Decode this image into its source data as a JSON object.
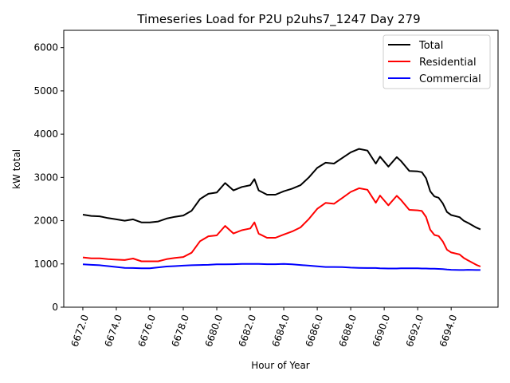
{
  "chart_data": {
    "type": "line",
    "title": "Timeseries Load for P2U p2uhs7_1247  Day 279",
    "xlabel": "Hour of Year",
    "ylabel": "kW total",
    "xlim": [
      6670.86,
      6696.8
    ],
    "ylim": [
      0,
      6400
    ],
    "xticks": [
      6672,
      6674,
      6676,
      6678,
      6680,
      6682,
      6684,
      6686,
      6688,
      6690,
      6692,
      6694
    ],
    "xtick_labels": [
      "6672.0",
      "6674.0",
      "6676.0",
      "6678.0",
      "6680.0",
      "6682.0",
      "6684.0",
      "6686.0",
      "6688.0",
      "6690.0",
      "6692.0",
      "6694.0"
    ],
    "yticks": [
      0,
      1000,
      2000,
      3000,
      4000,
      5000,
      6000
    ],
    "ytick_labels": [
      "0",
      "1000",
      "2000",
      "3000",
      "4000",
      "5000",
      "6000"
    ],
    "legend_placement": "top-right",
    "grid": false,
    "x": [
      6672,
      6672.5,
      6673,
      6673.5,
      6674,
      6674.5,
      6675,
      6675.5,
      6676,
      6676.5,
      6677,
      6677.5,
      6678,
      6678.5,
      6679,
      6679.5,
      6680,
      6680.5,
      6681,
      6681.5,
      6682,
      6682.25,
      6682.5,
      6683,
      6683.5,
      6684,
      6684.5,
      6685,
      6685.5,
      6686,
      6686.5,
      6687,
      6687.5,
      6688,
      6688.5,
      6689,
      6689.5,
      6689.75,
      6690.25,
      6690.75,
      6691,
      6691.5,
      6692,
      6692.25,
      6692.5,
      6692.75,
      6693,
      6693.25,
      6693.5,
      6693.75,
      6694,
      6694.5,
      6694.75,
      6695,
      6695.5,
      6695.75
    ],
    "series": [
      {
        "name": "Total",
        "color": "#000000",
        "values": [
          2140,
          2110,
          2100,
          2060,
          2030,
          2000,
          2030,
          1960,
          1960,
          1980,
          2050,
          2090,
          2120,
          2230,
          2500,
          2620,
          2650,
          2870,
          2700,
          2780,
          2820,
          2960,
          2700,
          2600,
          2600,
          2680,
          2740,
          2820,
          3000,
          3220,
          3340,
          3320,
          3450,
          3580,
          3660,
          3620,
          3320,
          3480,
          3250,
          3470,
          3380,
          3150,
          3140,
          3120,
          2980,
          2680,
          2560,
          2530,
          2400,
          2200,
          2130,
          2080,
          2000,
          1950,
          1840,
          1800
        ]
      },
      {
        "name": "Residential",
        "color": "#ff0000",
        "values": [
          1150,
          1130,
          1130,
          1110,
          1100,
          1090,
          1125,
          1060,
          1060,
          1060,
          1110,
          1140,
          1160,
          1260,
          1525,
          1640,
          1660,
          1880,
          1705,
          1780,
          1820,
          1960,
          1700,
          1605,
          1605,
          1680,
          1750,
          1845,
          2040,
          2275,
          2410,
          2390,
          2525,
          2665,
          2750,
          2715,
          2415,
          2580,
          2355,
          2575,
          2480,
          2250,
          2240,
          2225,
          2085,
          1790,
          1670,
          1645,
          1520,
          1330,
          1265,
          1220,
          1140,
          1085,
          980,
          940
        ]
      },
      {
        "name": "Commercial",
        "color": "#0000ff",
        "values": [
          990,
          980,
          970,
          950,
          930,
          910,
          905,
          900,
          900,
          920,
          940,
          950,
          960,
          970,
          975,
          980,
          990,
          990,
          995,
          1000,
          1000,
          1000,
          1000,
          995,
          995,
          1000,
          990,
          975,
          960,
          945,
          930,
          930,
          925,
          915,
          910,
          905,
          905,
          900,
          895,
          895,
          900,
          900,
          900,
          895,
          895,
          890,
          890,
          885,
          880,
          870,
          865,
          860,
          860,
          865,
          860,
          860
        ]
      }
    ]
  }
}
